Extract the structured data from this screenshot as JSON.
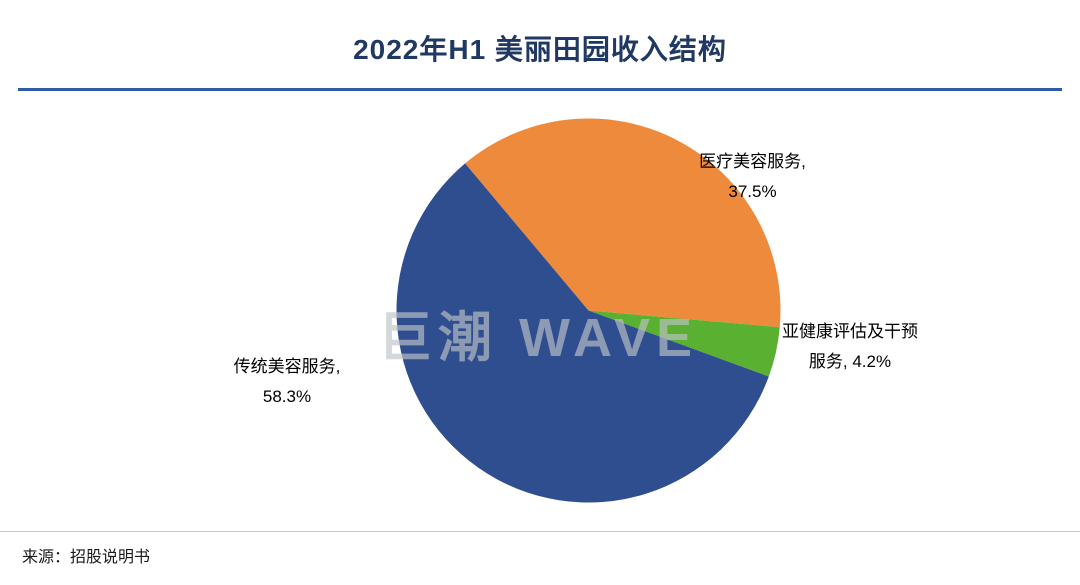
{
  "page": {
    "title": "2022年H1 美丽田园收入结构",
    "watermark": "巨潮 WAVE",
    "source": "来源：招股说明书"
  },
  "chart_data": {
    "type": "pie",
    "title": "2022年H1 美丽田园收入结构",
    "start_angle": -40,
    "direction": "clockwise",
    "legend": "none",
    "data_labels": "outside",
    "slices": [
      {
        "label": "医疗美容服务",
        "value": 37.5,
        "color": "#EE8A3C",
        "label_line1": "医疗美容服务,",
        "label_line2": "37.5%"
      },
      {
        "label": "亚健康评估及干预服务",
        "value": 4.2,
        "color": "#5AB031",
        "label_line1": "亚健康评估及干预",
        "label_line2": "服务, 4.2%"
      },
      {
        "label": "传统美容服务",
        "value": 58.3,
        "color": "#2F4E8F",
        "label_line1": "传统美容服务,",
        "label_line2": "58.3%"
      }
    ],
    "source": "来源：招股说明书"
  },
  "colors": {
    "title_text": "#203864",
    "title_rule": "#2E5BA8",
    "footer_rule": "#C9C9C9",
    "label_text": "#000000",
    "watermark": "#BEC3C8"
  }
}
